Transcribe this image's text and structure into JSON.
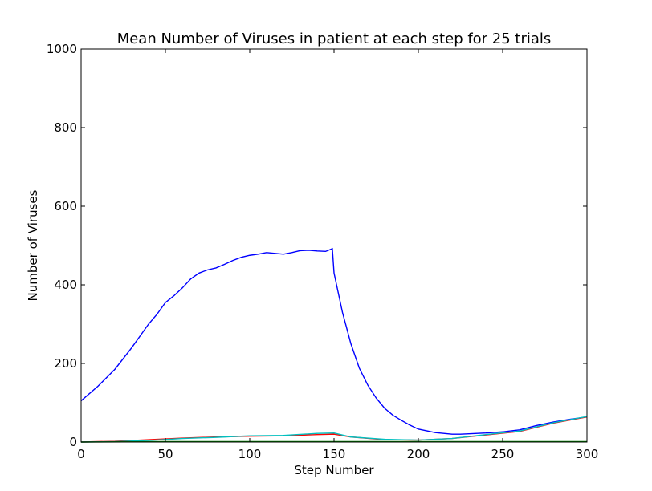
{
  "chart_data": {
    "type": "line",
    "title": "Mean Number of Viruses in patient at each step for 25 trials",
    "xlabel": "Step Number",
    "ylabel": "Number of Viruses",
    "xlim": [
      0,
      300
    ],
    "ylim": [
      0,
      1000
    ],
    "xticks": [
      0,
      50,
      100,
      150,
      200,
      250,
      300
    ],
    "yticks": [
      0,
      200,
      400,
      600,
      800,
      1000
    ],
    "grid": false,
    "legend": "none",
    "series": [
      {
        "color": "#0000ff",
        "x": [
          0,
          10,
          20,
          30,
          40,
          45,
          50,
          55,
          60,
          65,
          70,
          75,
          80,
          85,
          90,
          95,
          100,
          105,
          110,
          115,
          120,
          125,
          130,
          135,
          140,
          145,
          149,
          150,
          155,
          160,
          165,
          170,
          175,
          180,
          185,
          190,
          195,
          200,
          210,
          220,
          225,
          230,
          240,
          250,
          260,
          270,
          280,
          290,
          300
        ],
        "y": [
          105,
          142,
          185,
          240,
          300,
          325,
          355,
          372,
          392,
          415,
          430,
          438,
          443,
          452,
          462,
          470,
          475,
          478,
          482,
          480,
          478,
          482,
          487,
          488,
          486,
          485,
          492,
          430,
          330,
          250,
          188,
          145,
          112,
          86,
          68,
          55,
          43,
          33,
          24,
          20,
          20,
          21,
          23,
          26,
          31,
          42,
          51,
          58,
          64
        ]
      },
      {
        "color": "#ff0000",
        "x": [
          0,
          20,
          40,
          60,
          80,
          100,
          120,
          140,
          150,
          160,
          180,
          200,
          220,
          240,
          260,
          280,
          300
        ],
        "y": [
          0,
          2,
          6,
          10,
          13,
          15,
          16,
          19,
          20,
          13,
          6,
          5,
          9,
          18,
          27,
          48,
          64
        ]
      },
      {
        "color": "#00bfbf",
        "x": [
          0,
          20,
          40,
          60,
          80,
          100,
          120,
          140,
          150,
          160,
          180,
          200,
          220,
          240,
          260,
          280,
          300
        ],
        "y": [
          0,
          1,
          4,
          9,
          12,
          16,
          17,
          22,
          23,
          13,
          7,
          5,
          9,
          19,
          28,
          49,
          65
        ]
      },
      {
        "color": "#008000",
        "x": [
          0,
          50,
          100,
          150,
          200,
          250,
          300
        ],
        "y": [
          0,
          1,
          1,
          1,
          1,
          1,
          1
        ]
      }
    ]
  }
}
